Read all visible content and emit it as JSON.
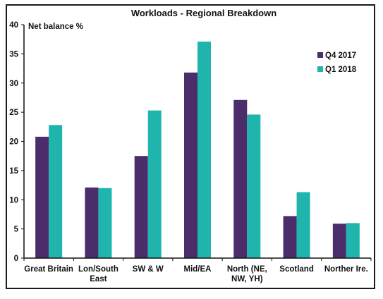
{
  "chart_data": {
    "type": "bar",
    "title": "Workloads - Regional Breakdown",
    "ylabel": "Net balance %",
    "xlabel": "",
    "ylim": [
      0,
      40
    ],
    "yticks": [
      0,
      5,
      10,
      15,
      20,
      25,
      30,
      35,
      40
    ],
    "grid": false,
    "legend_position": "top-right",
    "categories": [
      [
        "Great Britain"
      ],
      [
        "Lon/South",
        "East"
      ],
      [
        "SW & W"
      ],
      [
        "Mid/EA"
      ],
      [
        "North (NE,",
        "NW, YH)"
      ],
      [
        "Scotland"
      ],
      [
        "Norther Ire."
      ]
    ],
    "series": [
      {
        "name": "Q4 2017",
        "color": "#4b2d6b",
        "values": [
          20.8,
          12.1,
          17.5,
          31.8,
          27.1,
          7.2,
          5.9
        ]
      },
      {
        "name": "Q1 2018",
        "color": "#1fb5ad",
        "values": [
          22.8,
          12.0,
          25.3,
          37.1,
          24.6,
          11.3,
          6.0
        ]
      }
    ]
  }
}
